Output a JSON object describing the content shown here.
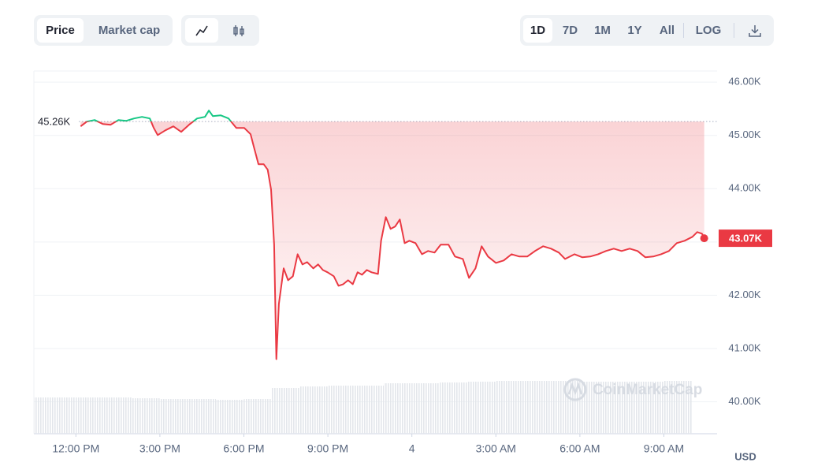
{
  "toolbar": {
    "metric_tabs": [
      "Price",
      "Market cap"
    ],
    "ranges": [
      "1D",
      "7D",
      "1M",
      "1Y",
      "All"
    ],
    "log": "LOG",
    "active_metric": 0,
    "active_range": 0
  },
  "chart_data": {
    "type": "line",
    "watermark": "CoinMarketCap",
    "currency": "USD",
    "x": [
      12.17,
      12.39,
      12.67,
      12.96,
      13.24,
      13.52,
      13.8,
      14.08,
      14.36,
      14.64,
      14.78,
      14.92,
      15.2,
      15.48,
      15.76,
      16.04,
      16.33,
      16.61,
      16.75,
      16.89,
      17.17,
      17.45,
      17.73,
      18.01,
      18.24,
      18.35,
      18.52,
      18.71,
      18.85,
      18.97,
      19.08,
      19.16,
      19.25,
      19.42,
      19.58,
      19.75,
      19.92,
      20.09,
      20.26,
      20.48,
      20.65,
      20.82,
      20.99,
      21.21,
      21.38,
      21.55,
      21.72,
      21.89,
      22.06,
      22.22,
      22.39,
      22.56,
      22.79,
      22.9,
      23.07,
      23.24,
      23.4,
      23.57,
      23.74,
      23.91,
      24.13,
      24.36,
      24.58,
      24.81,
      25.03,
      25.31,
      25.54,
      25.82,
      26.04,
      26.27,
      26.49,
      26.72,
      27.0,
      27.28,
      27.56,
      27.84,
      28.12,
      28.4,
      28.69,
      28.97,
      29.25,
      29.47,
      29.81,
      30.09,
      30.37,
      30.65,
      30.93,
      31.21,
      31.49,
      31.78,
      32.06,
      32.34,
      32.62,
      32.9,
      33.18,
      33.46,
      33.74,
      34.02,
      34.19,
      34.36,
      34.44
    ],
    "series": [
      {
        "name": "Price",
        "colors": {
          "above": "#16c784",
          "below": "#ea3943"
        },
        "values": [
          45170,
          45259,
          45289,
          45215,
          45200,
          45289,
          45274,
          45319,
          45348,
          45319,
          45141,
          45007,
          45096,
          45170,
          45067,
          45200,
          45319,
          45348,
          45467,
          45363,
          45378,
          45319,
          45141,
          45141,
          45022,
          44800,
          44459,
          44459,
          44356,
          43985,
          42948,
          40800,
          41837,
          42504,
          42281,
          42356,
          42770,
          42578,
          42622,
          42504,
          42578,
          42474,
          42430,
          42356,
          42178,
          42207,
          42281,
          42207,
          42430,
          42385,
          42474,
          42430,
          42400,
          43022,
          43467,
          43244,
          43289,
          43422,
          42978,
          43022,
          42978,
          42770,
          42830,
          42800,
          42948,
          42948,
          42726,
          42681,
          42326,
          42504,
          42919,
          42726,
          42607,
          42652,
          42770,
          42726,
          42726,
          42830,
          42919,
          42874,
          42800,
          42681,
          42770,
          42711,
          42726,
          42770,
          42830,
          42874,
          42830,
          42874,
          42830,
          42711,
          42726,
          42770,
          42830,
          42978,
          43022,
          43096,
          43185,
          43156,
          43070
        ]
      }
    ],
    "volume": {
      "color": "#e3e6eb",
      "x": [
        10.5,
        11.5,
        12.5,
        13.5,
        14.5,
        15.5,
        16.5,
        17.5,
        18.5,
        19.5,
        20.5,
        21.5,
        22.5,
        23.5,
        24.5,
        25.5,
        26.5,
        27.5,
        28.5,
        29.5,
        30.5,
        31.5,
        32.5,
        33.5
      ],
      "values": [
        46,
        46,
        46,
        46,
        45,
        44,
        44,
        43,
        44,
        58,
        60,
        61,
        61,
        64,
        64,
        65,
        66,
        67,
        67,
        67,
        66,
        66,
        66,
        67
      ]
    },
    "reference": {
      "value": 45260,
      "label": "45.26K"
    },
    "last_price": {
      "value": 43070,
      "label": "43.07K"
    },
    "xlim": [
      10.5,
      34.9
    ],
    "ylim": [
      39400,
      46210
    ],
    "xticks": [
      {
        "value": 12,
        "label": "12:00 PM"
      },
      {
        "value": 15,
        "label": "3:00 PM"
      },
      {
        "value": 18,
        "label": "6:00 PM"
      },
      {
        "value": 21,
        "label": "9:00 PM"
      },
      {
        "value": 24,
        "label": "4"
      },
      {
        "value": 27,
        "label": "3:00 AM"
      },
      {
        "value": 30,
        "label": "6:00 AM"
      },
      {
        "value": 33,
        "label": "9:00 AM"
      }
    ],
    "yticks": [
      {
        "value": 40000,
        "label": "40.00K"
      },
      {
        "value": 41000,
        "label": "41.00K"
      },
      {
        "value": 42000,
        "label": "42.00K"
      },
      {
        "value": 43000,
        "label": "43.00K"
      },
      {
        "value": 44000,
        "label": "44.00K"
      },
      {
        "value": 45000,
        "label": "45.00K"
      },
      {
        "value": 46000,
        "label": "46.00K"
      }
    ],
    "grid": true
  }
}
